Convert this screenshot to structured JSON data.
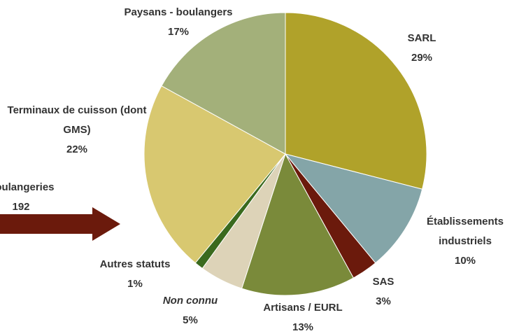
{
  "chart_data": {
    "type": "pie",
    "categories": [
      "SARL",
      "Établissements industriels",
      "SAS",
      "Artisans / EURL",
      "Non connu",
      "Autres statuts",
      "Terminaux de cuisson (dont GMS)",
      "Paysans - boulangers"
    ],
    "values": [
      29,
      10,
      3,
      13,
      5,
      1,
      22,
      17
    ],
    "value_labels": [
      "29%",
      "10%",
      "3%",
      "13%",
      "5%",
      "1%",
      "22%",
      "17%"
    ],
    "colors": [
      "#b0a22a",
      "#84a5a8",
      "#6b1a0c",
      "#7a8a3a",
      "#ddd3b8",
      "#3a6a1e",
      "#d8c870",
      "#a3b07a"
    ],
    "annotation": {
      "label": "Boulangeries",
      "value": "192"
    }
  }
}
